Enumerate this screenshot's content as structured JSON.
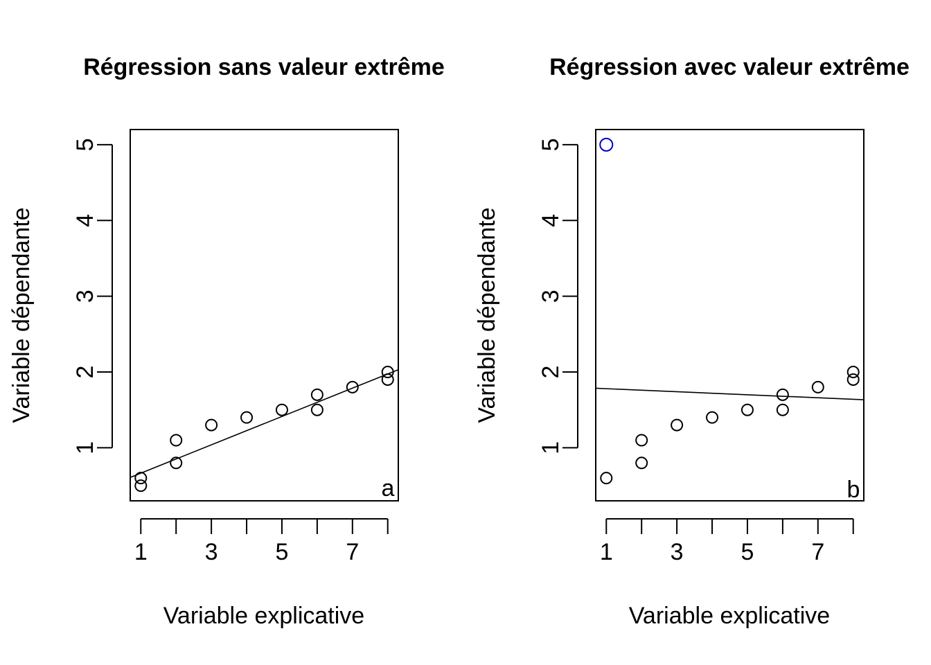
{
  "chart_data": [
    {
      "type": "scatter",
      "title": "Régression sans valeur extrême",
      "xlabel": "Variable explicative",
      "ylabel": "Variable dépendante",
      "panel_tag": "a",
      "xlim": [
        0.7,
        8.3
      ],
      "ylim": [
        0.3,
        5.2
      ],
      "x_ticks": [
        1,
        2,
        3,
        4,
        5,
        6,
        7,
        8
      ],
      "x_tick_labels": [
        "1",
        "3",
        "5",
        "7"
      ],
      "y_ticks": [
        1,
        2,
        3,
        4,
        5
      ],
      "y_tick_labels": [
        "1",
        "2",
        "3",
        "4",
        "5"
      ],
      "points": [
        {
          "x": 1,
          "y": 0.5
        },
        {
          "x": 1,
          "y": 0.6
        },
        {
          "x": 2,
          "y": 0.8
        },
        {
          "x": 2,
          "y": 1.1
        },
        {
          "x": 3,
          "y": 1.3
        },
        {
          "x": 4,
          "y": 1.4
        },
        {
          "x": 5,
          "y": 1.5
        },
        {
          "x": 6,
          "y": 1.5
        },
        {
          "x": 6,
          "y": 1.7
        },
        {
          "x": 7,
          "y": 1.8
        },
        {
          "x": 8,
          "y": 1.9
        },
        {
          "x": 8,
          "y": 2.0
        }
      ],
      "outliers": [],
      "regression_line": {
        "intercept": 0.478,
        "slope": 0.187
      },
      "point_color": "#000000",
      "outlier_color": "#0000cc"
    },
    {
      "type": "scatter",
      "title": "Régression avec valeur extrême",
      "xlabel": "Variable explicative",
      "ylabel": "Variable dépendante",
      "panel_tag": "b",
      "xlim": [
        0.7,
        8.3
      ],
      "ylim": [
        0.3,
        5.2
      ],
      "x_ticks": [
        1,
        2,
        3,
        4,
        5,
        6,
        7,
        8
      ],
      "x_tick_labels": [
        "1",
        "3",
        "5",
        "7"
      ],
      "y_ticks": [
        1,
        2,
        3,
        4,
        5
      ],
      "y_tick_labels": [
        "1",
        "2",
        "3",
        "4",
        "5"
      ],
      "points": [
        {
          "x": 1,
          "y": 0.6
        },
        {
          "x": 2,
          "y": 0.8
        },
        {
          "x": 2,
          "y": 1.1
        },
        {
          "x": 3,
          "y": 1.3
        },
        {
          "x": 4,
          "y": 1.4
        },
        {
          "x": 5,
          "y": 1.5
        },
        {
          "x": 6,
          "y": 1.5
        },
        {
          "x": 6,
          "y": 1.7
        },
        {
          "x": 7,
          "y": 1.8
        },
        {
          "x": 8,
          "y": 1.9
        },
        {
          "x": 8,
          "y": 2.0
        }
      ],
      "outliers": [
        {
          "x": 1,
          "y": 5.0
        }
      ],
      "regression_line": {
        "intercept": 1.8,
        "slope": -0.02
      },
      "point_color": "#000000",
      "outlier_color": "#0000cc"
    }
  ]
}
